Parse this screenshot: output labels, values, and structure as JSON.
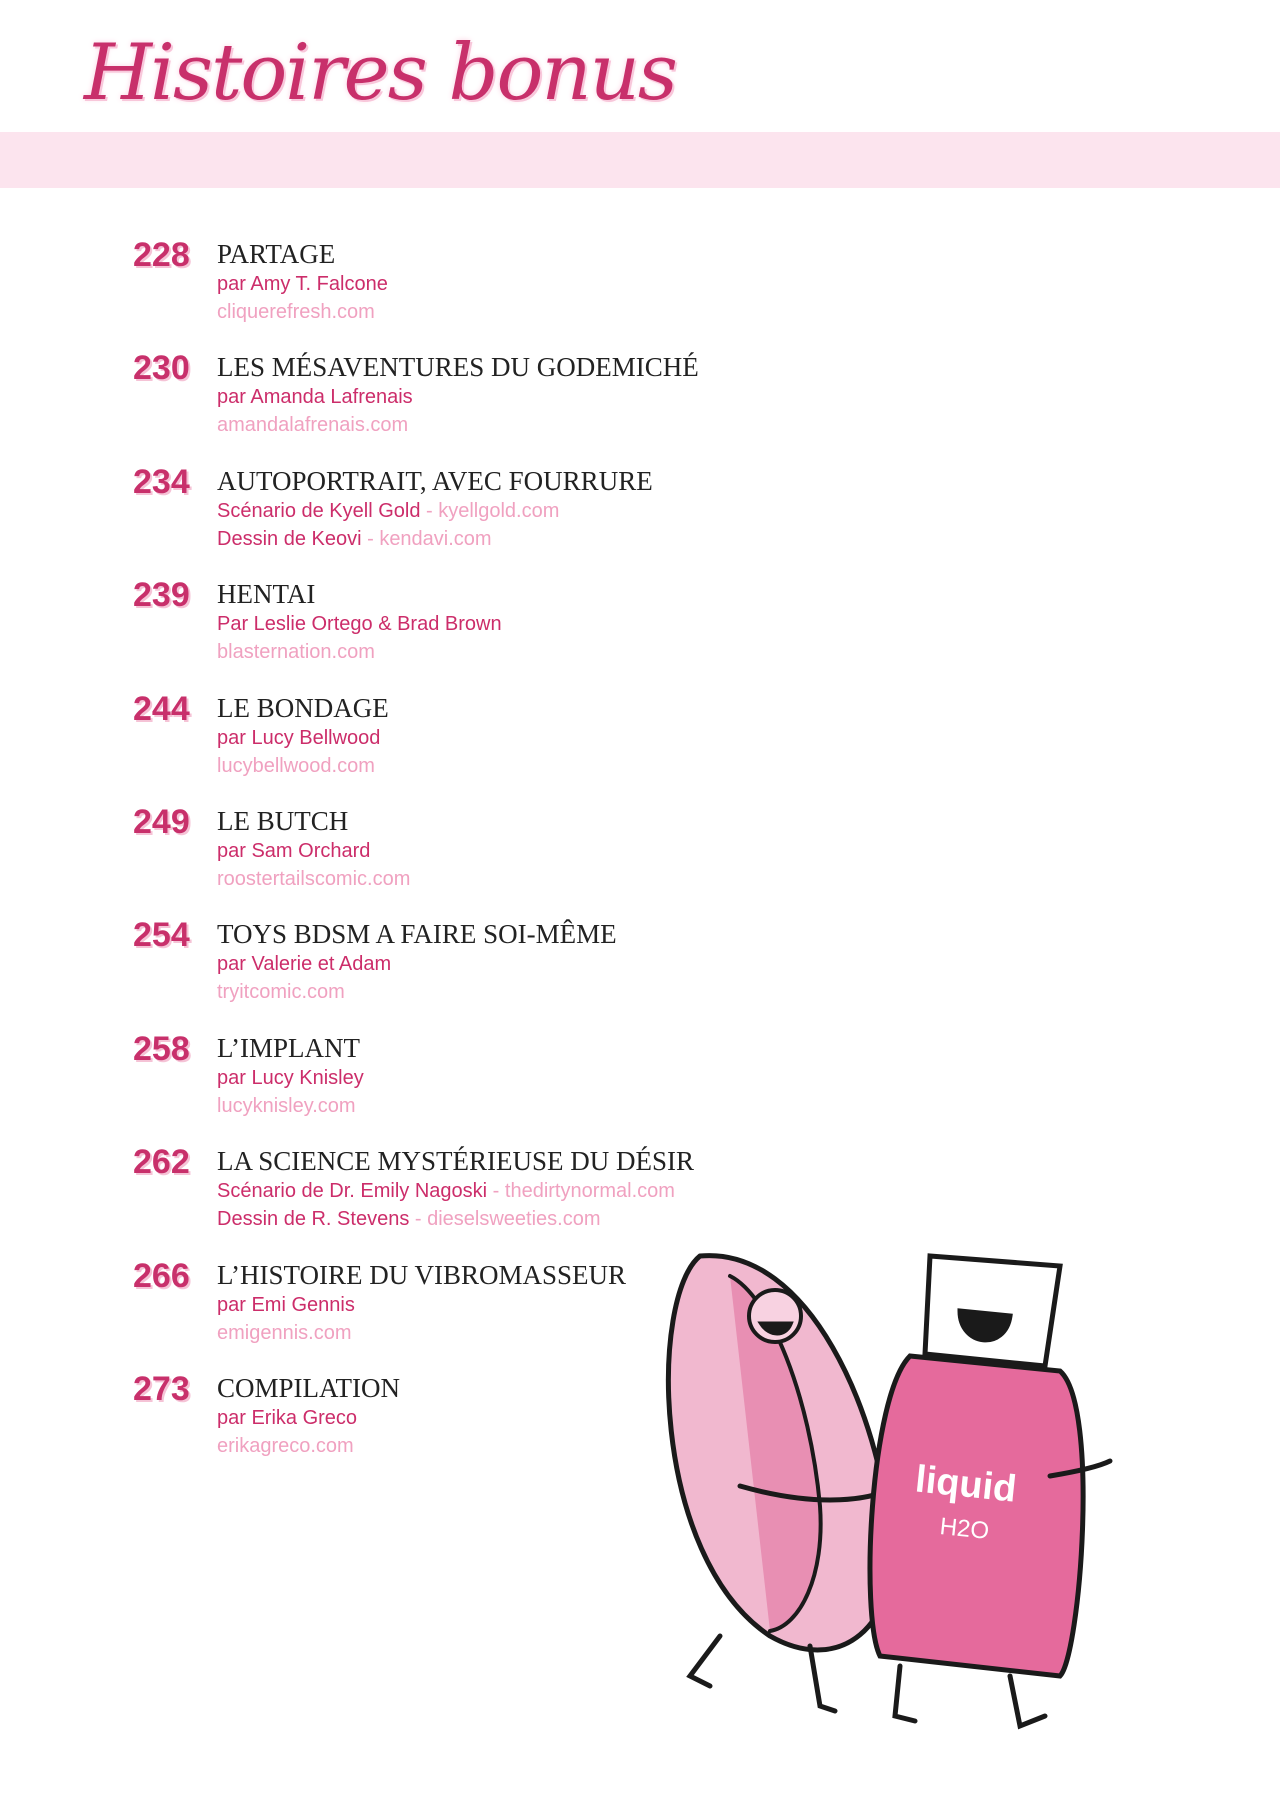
{
  "title": "Histoires bonus",
  "colors": {
    "accent": "#c8306b",
    "band": "#fce4ee",
    "url": "#f0a1c0"
  },
  "entries": [
    {
      "page": "228",
      "title": "PARTAGE",
      "lines": [
        {
          "credit": "par Amy T. Falcone"
        },
        {
          "url": "cliquerefresh.com"
        }
      ]
    },
    {
      "page": "230",
      "title": "LES MÉSAVENTURES DU GODEMICHÉ",
      "lines": [
        {
          "credit": "par Amanda Lafrenais"
        },
        {
          "url": "amandalafrenais.com"
        }
      ]
    },
    {
      "page": "234",
      "title": "AUTOPORTRAIT, AVEC FOURRURE",
      "lines": [
        {
          "credit": "Scénario de Kyell Gold",
          "url": "kyellgold.com"
        },
        {
          "credit": "Dessin de Keovi",
          "url": "kendavi.com"
        }
      ]
    },
    {
      "page": "239",
      "title": "HENTAI",
      "lines": [
        {
          "credit": "Par Leslie Ortego & Brad Brown"
        },
        {
          "url": "blasternation.com"
        }
      ]
    },
    {
      "page": "244",
      "title": "LE BONDAGE",
      "lines": [
        {
          "credit": "par Lucy Bellwood"
        },
        {
          "url": "lucybellwood.com"
        }
      ]
    },
    {
      "page": "249",
      "title": "LE BUTCH",
      "lines": [
        {
          "credit": "par Sam Orchard"
        },
        {
          "url": "roostertailscomic.com"
        }
      ]
    },
    {
      "page": "254",
      "title": "TOYS BDSM A FAIRE SOI-MÊME",
      "lines": [
        {
          "credit": "par Valerie et Adam"
        },
        {
          "url": "tryitcomic.com"
        }
      ]
    },
    {
      "page": "258",
      "title": "L’IMPLANT",
      "lines": [
        {
          "credit": "par Lucy Knisley"
        },
        {
          "url": "lucyknisley.com"
        }
      ]
    },
    {
      "page": "262",
      "title": "LA SCIENCE MYSTÉRIEUSE DU DÉSIR",
      "lines": [
        {
          "credit": "Scénario de Dr. Emily Nagoski",
          "url": "thedirtynormal.com"
        },
        {
          "credit": "Dessin de R. Stevens",
          "url": "dieselsweeties.com"
        }
      ]
    },
    {
      "page": "266",
      "title": "L’HISTOIRE DU VIBROMASSEUR",
      "lines": [
        {
          "credit": "par Emi Gennis"
        },
        {
          "url": "emigennis.com"
        }
      ]
    },
    {
      "page": "273",
      "title": "COMPILATION",
      "lines": [
        {
          "credit": "par Erika Greco"
        },
        {
          "url": "erikagreco.com"
        }
      ]
    }
  ],
  "illustration": {
    "bottle_label": "liquid",
    "bottle_sub": "H2O"
  }
}
